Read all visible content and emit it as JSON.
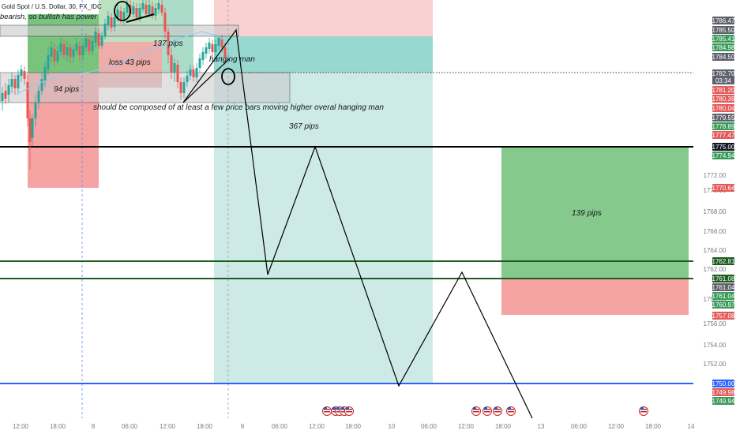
{
  "header": {
    "symbol_line": "Gold Spot / U.S. Dollar, 30, FX_IDC",
    "note": "bearish, so bullish has power"
  },
  "annotations": {
    "pips_137": "137 pips",
    "loss_43": "loss 43 pips",
    "hanging_man": "hanging man",
    "pips_94": "94 pips",
    "composed_note": "should be composed of at least a few price bars moving higher overal hanging man",
    "pips_367": "367 pips",
    "pips_139": "139 pips"
  },
  "price_axis": {
    "ticks": [
      "1772.00",
      "1770.00",
      "1768.00",
      "1766.00",
      "1764.00",
      "1762.00",
      "1758.00",
      "1756.00",
      "1754.00",
      "1752.00"
    ],
    "tags": [
      {
        "label": "1786.47",
        "color": "#5d606b"
      },
      {
        "label": "1785.50",
        "color": "#5d606b"
      },
      {
        "label": "1785.41",
        "color": "#3b9a5a"
      },
      {
        "label": "1784.98",
        "color": "#3b9a5a"
      },
      {
        "label": "1784.50",
        "color": "#5d606b"
      },
      {
        "label": "1782.70",
        "color": "#5d606b"
      },
      {
        "label": "03:34",
        "color": "#5d606b"
      },
      {
        "label": "1781.20",
        "color": "#e45a5a"
      },
      {
        "label": "1780.39",
        "color": "#e45a5a"
      },
      {
        "label": "1780.04",
        "color": "#e45a5a"
      },
      {
        "label": "1779.55",
        "color": "#5d606b"
      },
      {
        "label": "1778.89",
        "color": "#3b9a5a"
      },
      {
        "label": "1777.47",
        "color": "#e45a5a"
      },
      {
        "label": "1775.00",
        "color": "#131722"
      },
      {
        "label": "1774.94",
        "color": "#3b9a5a"
      },
      {
        "label": "1770.64",
        "color": "#e45a5a"
      },
      {
        "label": "1762.81",
        "color": "#1e5c1e"
      },
      {
        "label": "1761.08",
        "color": "#1e5c1e"
      },
      {
        "label": "1761.04",
        "color": "#5d606b"
      },
      {
        "label": "1761.04",
        "color": "#3b9a5a"
      },
      {
        "label": "1760.97",
        "color": "#3b9a5a"
      },
      {
        "label": "1757.08",
        "color": "#e45a5a"
      },
      {
        "label": "1750.00",
        "color": "#2962ff"
      },
      {
        "label": "1749.98",
        "color": "#e45a5a"
      },
      {
        "label": "1749.94",
        "color": "#3b9a5a"
      }
    ]
  },
  "time_axis": {
    "ticks": [
      "12:00",
      "18:00",
      "8",
      "06:00",
      "12:00",
      "18:00",
      "9",
      "06:00",
      "12:00",
      "18:00",
      "10",
      "06:00",
      "12:00",
      "18:00",
      "13",
      "06:00",
      "12:00",
      "18:00",
      "14"
    ]
  },
  "colors": {
    "long_green": "#4caf50",
    "short_red": "#f44336",
    "teal": "#22ab94",
    "horizontal_black": "#000000",
    "horizontal_green": "#1b5e20",
    "horizontal_blue": "#2962ff"
  },
  "icons": {
    "events": "us-flag-event-icon"
  }
}
